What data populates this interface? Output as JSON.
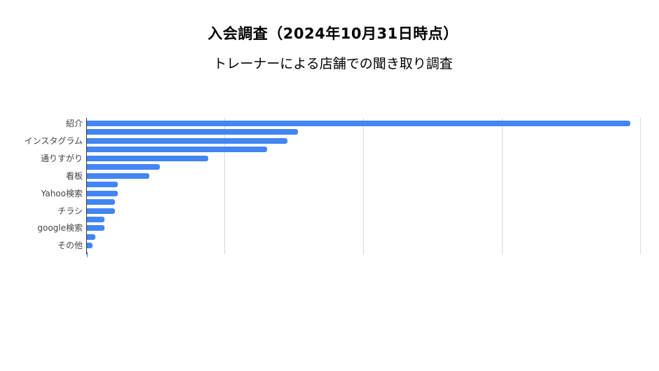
{
  "header": {
    "title": "入会調査（2024年10月31日時点）",
    "subtitle": "トレーナーによる店舗での聞き取り調査"
  },
  "chart_data": {
    "type": "bar",
    "orientation": "horizontal",
    "title": "入会調査（2024年10月31日時点）",
    "subtitle": "トレーナーによる店舗での聞き取り調査",
    "xlabel": "",
    "ylabel": "",
    "grid": true,
    "legend": "none",
    "bar_color": "#4285f4",
    "x_gridlines": 4,
    "xlim": [
      0,
      160
    ],
    "categories": [
      "紹介",
      "",
      "インスタグラム",
      "",
      "通りすがり",
      "",
      "看板",
      "",
      "Yahoo検索",
      "",
      "チラシ",
      "",
      "google検索",
      "",
      "その他",
      ""
    ],
    "visible_tick_labels": [
      "紹介",
      "インスタグラム",
      "通りすがり",
      "看板",
      "Yahoo検索",
      "チラシ",
      "google検索",
      "その他"
    ],
    "values": [
      157,
      61,
      58,
      52,
      35,
      21,
      18,
      9,
      9,
      8,
      8,
      5,
      5,
      2.5,
      1.6,
      0.3
    ]
  }
}
